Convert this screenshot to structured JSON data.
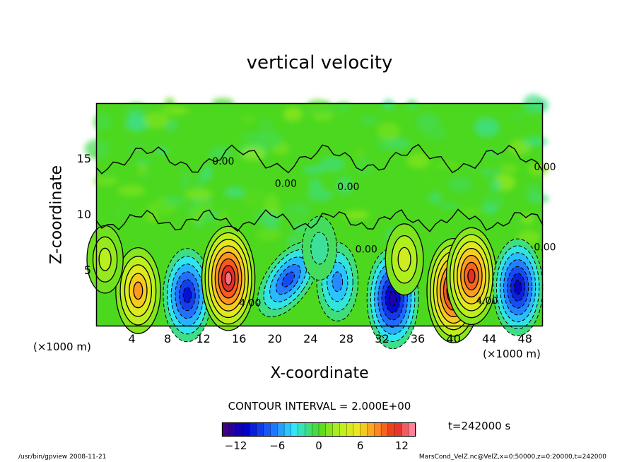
{
  "chart_data": {
    "type": "heatmap",
    "title": "vertical velocity",
    "xlabel": "X-coordinate",
    "ylabel": "Z-coordinate",
    "x_unit": "(×1000 m)",
    "z_unit": "(×1000 m)",
    "xlim": [
      0,
      50
    ],
    "ylim": [
      0,
      20
    ],
    "x_ticks": [
      4,
      8,
      12,
      16,
      20,
      24,
      28,
      32,
      36,
      40,
      44,
      48
    ],
    "y_ticks": [
      5,
      10,
      15
    ],
    "contour_interval_text": "CONTOUR INTERVAL = 2.000E+00",
    "contour_labels": [
      "0.00",
      "0.00",
      "0.00",
      "0.00",
      "0.00",
      "0.00",
      "4.00",
      "4.00"
    ],
    "colorbar": {
      "min": -14,
      "max": 14,
      "ticks": [
        -12,
        -6,
        0,
        6,
        12
      ]
    },
    "time_text": "t=242000 s",
    "cells": [
      {
        "x": 4.7,
        "z": 3.2,
        "value": 8
      },
      {
        "x": 10.2,
        "z": 2.8,
        "value": -10
      },
      {
        "x": 14.8,
        "z": 4.3,
        "value": 13
      },
      {
        "x": 21.5,
        "z": 4.2,
        "value": -8
      },
      {
        "x": 27.0,
        "z": 4.0,
        "value": -6
      },
      {
        "x": 33.2,
        "z": 2.5,
        "value": -12
      },
      {
        "x": 34.5,
        "z": 6.0,
        "value": 4
      },
      {
        "x": 40.0,
        "z": 3.2,
        "value": 13
      },
      {
        "x": 42.0,
        "z": 4.5,
        "value": 11
      },
      {
        "x": 47.2,
        "z": 3.5,
        "value": -11
      },
      {
        "x": 1.0,
        "z": 6.0,
        "value": 3
      },
      {
        "x": 25.0,
        "z": 7.0,
        "value": -2
      }
    ]
  },
  "footer": {
    "left": "/usr/bin/gpview   2008-11-21",
    "right": "MarsCond_VelZ.nc@VelZ,x=0:50000,z=0:20000,t=242000"
  }
}
